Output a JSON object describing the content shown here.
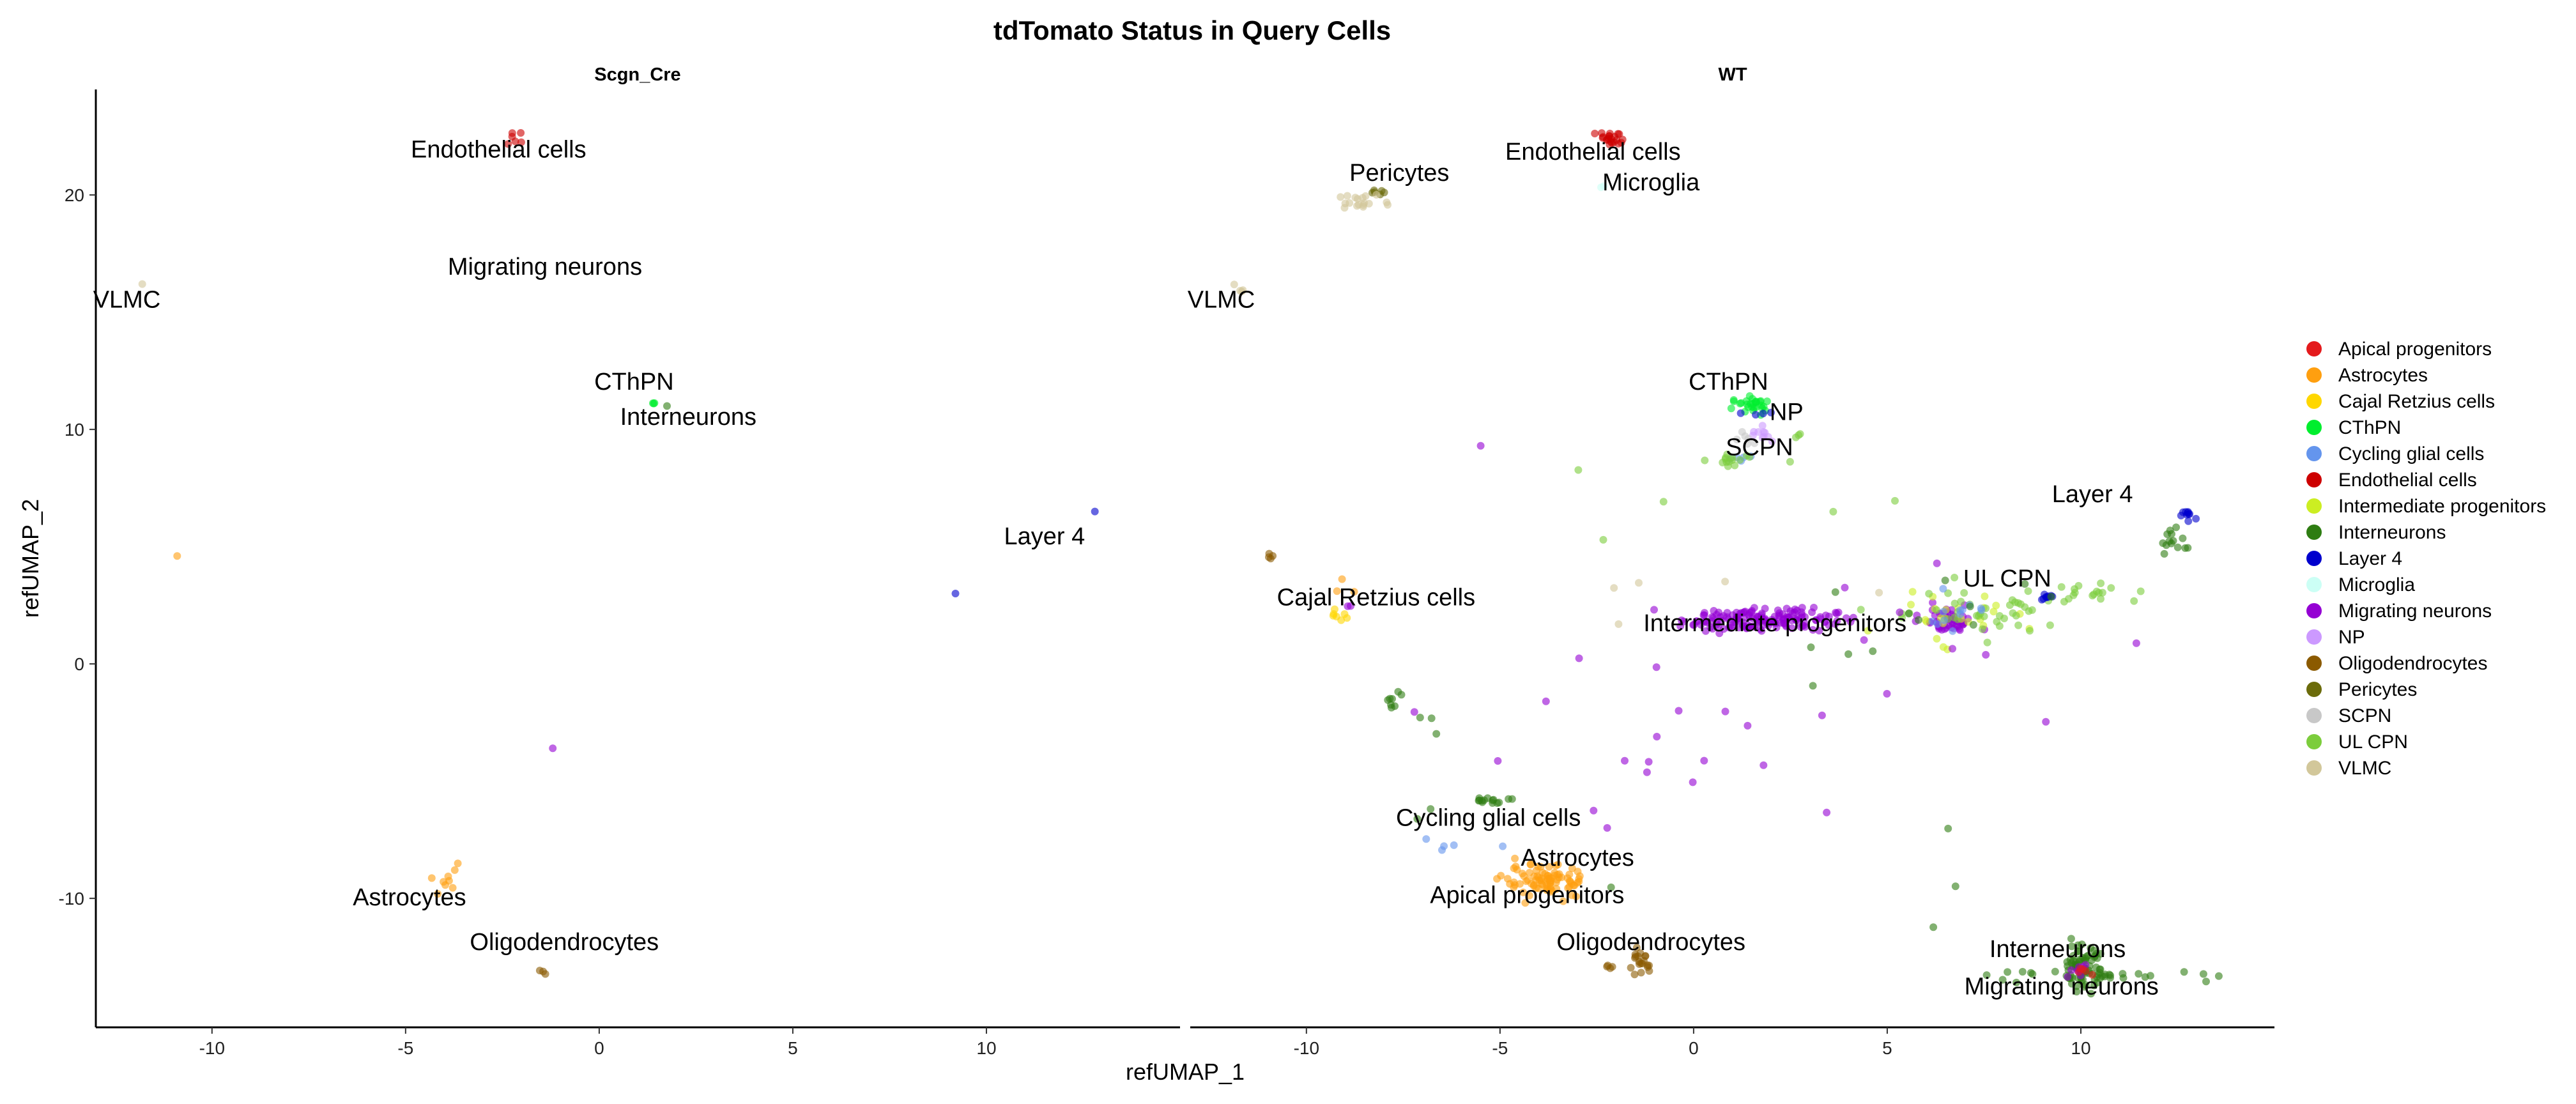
{
  "chart_data": {
    "type": "scatter",
    "title": "tdTomato Status in Query Cells",
    "xlabel": "refUMAP_1",
    "ylabel": "refUMAP_2",
    "xlim": [
      -13,
      15
    ],
    "ylim": [
      -15.5,
      24.5
    ],
    "xticks": [
      -10,
      -5,
      0,
      5,
      10
    ],
    "yticks": [
      -10,
      0,
      10,
      20
    ],
    "legend_position": "right",
    "legend": [
      {
        "name": "Apical progenitors",
        "color": "#E41A1C"
      },
      {
        "name": "Astrocytes",
        "color": "#FF9F0F"
      },
      {
        "name": "Cajal Retzius cells",
        "color": "#FFD700"
      },
      {
        "name": "CThPN",
        "color": "#00EE2E"
      },
      {
        "name": "Cycling glial cells",
        "color": "#6495ED"
      },
      {
        "name": "Endothelial cells",
        "color": "#CD0000"
      },
      {
        "name": "Intermediate progenitors",
        "color": "#CCEE22"
      },
      {
        "name": "Interneurons",
        "color": "#2E7D12"
      },
      {
        "name": "Layer 4",
        "color": "#0000CD"
      },
      {
        "name": "Microglia",
        "color": "#CCFFF5"
      },
      {
        "name": "Migrating neurons",
        "color": "#9400D3"
      },
      {
        "name": "NP",
        "color": "#CC99FF"
      },
      {
        "name": "Oligodendrocytes",
        "color": "#8B5A00"
      },
      {
        "name": "Pericytes",
        "color": "#6B6B0A"
      },
      {
        "name": "SCPN",
        "color": "#C8C8C8"
      },
      {
        "name": "UL CPN",
        "color": "#7CCD3C"
      },
      {
        "name": "VLMC",
        "color": "#D2C79A"
      }
    ],
    "panels": [
      {
        "name": "Scgn_Cre",
        "cluster_labels": [
          {
            "text": "Endothelial cells",
            "x": -2.6,
            "y": 21.6
          },
          {
            "text": "Migrating neurons",
            "x": -1.4,
            "y": 16.6
          },
          {
            "text": "VLMC",
            "x": -12.2,
            "y": 15.2
          },
          {
            "text": "CThPN",
            "x": 0.9,
            "y": 11.7
          },
          {
            "text": "Interneurons",
            "x": 2.3,
            "y": 10.2
          },
          {
            "text": "Layer 4",
            "x": 11.5,
            "y": 5.1
          },
          {
            "text": "Astrocytes",
            "x": -4.9,
            "y": -10.3
          },
          {
            "text": "Oligodendrocytes",
            "x": -0.9,
            "y": -12.2
          }
        ],
        "clusters": [
          {
            "name": "Endothelial cells",
            "cx": -2.1,
            "cy": 22.4,
            "sx": 0.2,
            "sy": 0.15,
            "n": 6
          },
          {
            "name": "VLMC",
            "cx": -11.8,
            "cy": 16.2,
            "sx": 0.04,
            "sy": 0.05,
            "n": 1
          },
          {
            "name": "CThPN",
            "cx": 1.4,
            "cy": 11.1,
            "sx": 0.05,
            "sy": 0.08,
            "n": 3
          },
          {
            "name": "Interneurons",
            "cx": 1.75,
            "cy": 11.0,
            "sx": 0.04,
            "sy": 0.04,
            "n": 1
          },
          {
            "name": "Astrocytes",
            "cx": -10.9,
            "cy": 4.6,
            "sx": 0.04,
            "sy": 0.04,
            "n": 1
          },
          {
            "name": "Astrocytes",
            "cx": -4.0,
            "cy": -9.4,
            "sx": 0.35,
            "sy": 0.3,
            "n": 9
          },
          {
            "name": "Layer 4",
            "cx": 12.8,
            "cy": 6.5,
            "sx": 0.04,
            "sy": 0.04,
            "n": 1
          },
          {
            "name": "Layer 4",
            "cx": 9.2,
            "cy": 3.0,
            "sx": 0.04,
            "sy": 0.04,
            "n": 1
          },
          {
            "name": "Migrating neurons",
            "cx": -1.2,
            "cy": -3.6,
            "sx": 0.04,
            "sy": 0.04,
            "n": 1
          },
          {
            "name": "Oligodendrocytes",
            "cx": -1.5,
            "cy": -13.1,
            "sx": 0.05,
            "sy": 0.12,
            "n": 3
          }
        ]
      },
      {
        "name": "WT",
        "cluster_labels": [
          {
            "text": "Endothelial cells",
            "x": -2.6,
            "y": 21.5
          },
          {
            "text": "Pericytes",
            "x": -7.6,
            "y": 20.6
          },
          {
            "text": "Microglia",
            "x": -1.1,
            "y": 20.2
          },
          {
            "text": "VLMC",
            "x": -12.2,
            "y": 15.2
          },
          {
            "text": "CThPN",
            "x": 0.9,
            "y": 11.7
          },
          {
            "text": "NP",
            "x": 2.4,
            "y": 10.4
          },
          {
            "text": "SCPN",
            "x": 1.7,
            "y": 8.9
          },
          {
            "text": "Layer 4",
            "x": 10.3,
            "y": 6.9
          },
          {
            "text": "UL CPN",
            "x": 8.1,
            "y": 3.3
          },
          {
            "text": "Cajal Retzius cells",
            "x": -8.2,
            "y": 2.5
          },
          {
            "text": "Intermediate progenitors",
            "x": 2.1,
            "y": 1.4
          },
          {
            "text": "Cycling glial cells",
            "x": -5.3,
            "y": -6.9
          },
          {
            "text": "Astrocytes",
            "x": -3.0,
            "y": -8.6
          },
          {
            "text": "Apical progenitors",
            "x": -4.3,
            "y": -10.2
          },
          {
            "text": "Oligodendrocytes",
            "x": -1.1,
            "y": -12.2
          },
          {
            "text": "Interneurons",
            "x": 9.4,
            "y": -12.5
          },
          {
            "text": "Migrating neurons",
            "x": 9.5,
            "y": -14.1
          }
        ],
        "clusters": [
          {
            "name": "Endothelial cells",
            "cx": -2.1,
            "cy": 22.4,
            "sx": 0.25,
            "sy": 0.15,
            "n": 22
          },
          {
            "name": "Microglia",
            "cx": -2.4,
            "cy": 20.3,
            "sx": 0.04,
            "sy": 0.04,
            "n": 2
          },
          {
            "name": "Pericytes",
            "cx": -8.1,
            "cy": 20.1,
            "sx": 0.12,
            "sy": 0.08,
            "n": 6
          },
          {
            "name": "VLMC",
            "cx": -8.6,
            "cy": 19.7,
            "sx": 0.3,
            "sy": 0.15,
            "n": 18
          },
          {
            "name": "VLMC",
            "cx": -11.8,
            "cy": 16.1,
            "sx": 0.08,
            "sy": 0.1,
            "n": 4
          },
          {
            "name": "CThPN",
            "cx": 1.5,
            "cy": 11.0,
            "sx": 0.25,
            "sy": 0.2,
            "n": 28
          },
          {
            "name": "Layer 4",
            "cx": 1.6,
            "cy": 10.6,
            "sx": 0.15,
            "sy": 0.1,
            "n": 4
          },
          {
            "name": "NP",
            "cx": 1.8,
            "cy": 9.8,
            "sx": 0.2,
            "sy": 0.2,
            "n": 10
          },
          {
            "name": "SCPN",
            "cx": 1.4,
            "cy": 9.6,
            "sx": 0.15,
            "sy": 0.15,
            "n": 6
          },
          {
            "name": "Cycling glial cells",
            "cx": 1.2,
            "cy": 8.8,
            "sx": 0.15,
            "sy": 0.1,
            "n": 5
          },
          {
            "name": "UL CPN",
            "cx": 1.1,
            "cy": 8.7,
            "sx": 0.25,
            "sy": 0.15,
            "n": 14
          },
          {
            "name": "UL CPN",
            "cx": 2.7,
            "cy": 9.8,
            "sx": 0.05,
            "sy": 0.1,
            "n": 3
          },
          {
            "name": "Layer 4",
            "cx": 12.8,
            "cy": 6.4,
            "sx": 0.12,
            "sy": 0.15,
            "n": 10
          },
          {
            "name": "Interneurons",
            "cx": 12.4,
            "cy": 5.3,
            "sx": 0.25,
            "sy": 0.3,
            "n": 14
          },
          {
            "name": "Migrating neurons",
            "cx": 1.7,
            "cy": 1.9,
            "sx": 1.0,
            "sy": 0.25,
            "n": 160
          },
          {
            "name": "Migrating neurons",
            "cx": 6.6,
            "cy": 1.8,
            "sx": 0.35,
            "sy": 0.3,
            "n": 50
          },
          {
            "name": "Intermediate progenitors",
            "cx": 6.5,
            "cy": 2.2,
            "sx": 0.8,
            "sy": 0.6,
            "n": 25
          },
          {
            "name": "UL CPN",
            "cx": 7.3,
            "cy": 2.2,
            "sx": 1.4,
            "sy": 0.5,
            "n": 45
          },
          {
            "name": "UL CPN",
            "cx": 10.0,
            "cy": 3.0,
            "sx": 0.6,
            "sy": 0.3,
            "n": 14
          },
          {
            "name": "Layer 4",
            "cx": 9.1,
            "cy": 2.9,
            "sx": 0.15,
            "sy": 0.12,
            "n": 9
          },
          {
            "name": "Cycling glial cells",
            "cx": 7.0,
            "cy": 2.3,
            "sx": 0.6,
            "sy": 0.4,
            "n": 12
          },
          {
            "name": "Interneurons",
            "cx": 5.5,
            "cy": 1.5,
            "sx": 2.0,
            "sy": 1.0,
            "n": 12
          },
          {
            "name": "Migrating neurons",
            "cx": 5.2,
            "cy": 0.5,
            "sx": 2.5,
            "sy": 2.0,
            "n": 10
          },
          {
            "name": "Oligodendrocytes",
            "cx": -11.0,
            "cy": 4.6,
            "sx": 0.05,
            "sy": 0.1,
            "n": 4
          },
          {
            "name": "Cajal Retzius cells",
            "cx": -9.1,
            "cy": 2.0,
            "sx": 0.1,
            "sy": 0.15,
            "n": 7
          },
          {
            "name": "Migrating neurons",
            "cx": -8.9,
            "cy": 2.4,
            "sx": 0.05,
            "sy": 0.05,
            "n": 2
          },
          {
            "name": "Interneurons",
            "cx": -7.8,
            "cy": -1.5,
            "sx": 0.15,
            "sy": 0.3,
            "n": 8
          },
          {
            "name": "Interneurons",
            "cx": -5.1,
            "cy": -5.8,
            "sx": 0.3,
            "sy": 0.1,
            "n": 14
          },
          {
            "name": "Interneurons",
            "cx": -6.9,
            "cy": -3.0,
            "sx": 0.2,
            "sy": 1.2,
            "n": 5
          },
          {
            "name": "Cycling glial cells",
            "cx": -6.0,
            "cy": -7.7,
            "sx": 0.6,
            "sy": 0.15,
            "n": 5
          },
          {
            "name": "Astrocytes",
            "cx": -3.8,
            "cy": -9.3,
            "sx": 0.55,
            "sy": 0.35,
            "n": 90
          },
          {
            "name": "Oligodendrocytes",
            "cx": -1.4,
            "cy": -12.8,
            "sx": 0.12,
            "sy": 0.25,
            "n": 20
          },
          {
            "name": "Oligodendrocytes",
            "cx": -2.2,
            "cy": -12.9,
            "sx": 0.08,
            "sy": 0.06,
            "n": 4
          },
          {
            "name": "Interneurons",
            "cx": 10.0,
            "cy": -12.9,
            "sx": 0.25,
            "sy": 0.45,
            "n": 60
          },
          {
            "name": "Interneurons",
            "cx": 10.6,
            "cy": -13.3,
            "sx": 1.4,
            "sy": 0.12,
            "n": 40
          },
          {
            "name": "Migrating neurons",
            "cx": 9.8,
            "cy": -13.1,
            "sx": 0.2,
            "sy": 0.15,
            "n": 8
          },
          {
            "name": "Apical progenitors",
            "cx": 10.1,
            "cy": -13.1,
            "sx": 0.15,
            "sy": 0.1,
            "n": 5
          },
          {
            "name": "Migrating neurons",
            "cx": 0.0,
            "cy": -3.5,
            "sx": 3.0,
            "sy": 1.9,
            "n": 18
          },
          {
            "name": "Migrating neurons",
            "cx": -5.5,
            "cy": 9.3,
            "sx": 0.05,
            "sy": 0.05,
            "n": 1
          },
          {
            "name": "VLMC",
            "cx": -0.5,
            "cy": 2.6,
            "sx": 2.5,
            "sy": 1.5,
            "n": 5
          },
          {
            "name": "UL CPN",
            "cx": 0.5,
            "cy": 6.5,
            "sx": 3.5,
            "sy": 1.2,
            "n": 6
          },
          {
            "name": "Astrocytes",
            "cx": -9.2,
            "cy": 3.5,
            "sx": 0.5,
            "sy": 0.5,
            "n": 3
          },
          {
            "name": "Interneurons",
            "cx": 5.0,
            "cy": -6.0,
            "sx": 3.0,
            "sy": 2.0,
            "n": 4
          }
        ]
      }
    ]
  }
}
